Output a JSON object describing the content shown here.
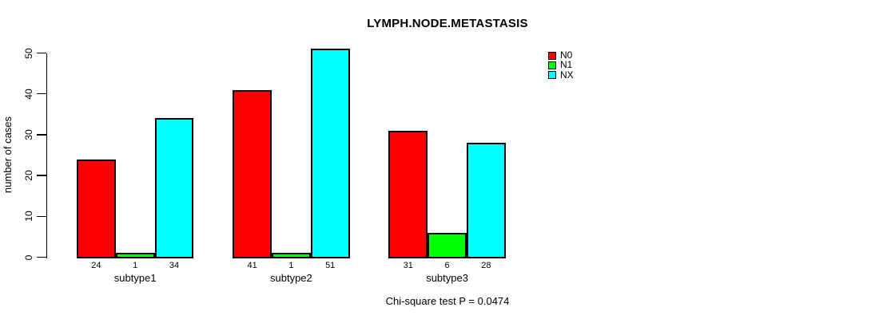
{
  "chart_data": {
    "type": "bar",
    "title": "LYMPH.NODE.METASTASIS",
    "ylabel": "number of cases",
    "xlabel": "",
    "categories": [
      "subtype1",
      "subtype2",
      "subtype3"
    ],
    "series": [
      {
        "name": "N0",
        "color": "#ff0000",
        "values": [
          24,
          41,
          31
        ]
      },
      {
        "name": "N1",
        "color": "#00ff00",
        "values": [
          1,
          1,
          6
        ]
      },
      {
        "name": "NX",
        "color": "#00ffff",
        "values": [
          34,
          51,
          28
        ]
      }
    ],
    "ylim": [
      0,
      50
    ],
    "yticks": [
      0,
      10,
      20,
      30,
      40,
      50
    ],
    "grid": false,
    "show_bar_values": true,
    "bar_border_color": "#000000",
    "legend_position": "top-right-inside",
    "annotation": "Chi-square test P = 0.0474"
  }
}
